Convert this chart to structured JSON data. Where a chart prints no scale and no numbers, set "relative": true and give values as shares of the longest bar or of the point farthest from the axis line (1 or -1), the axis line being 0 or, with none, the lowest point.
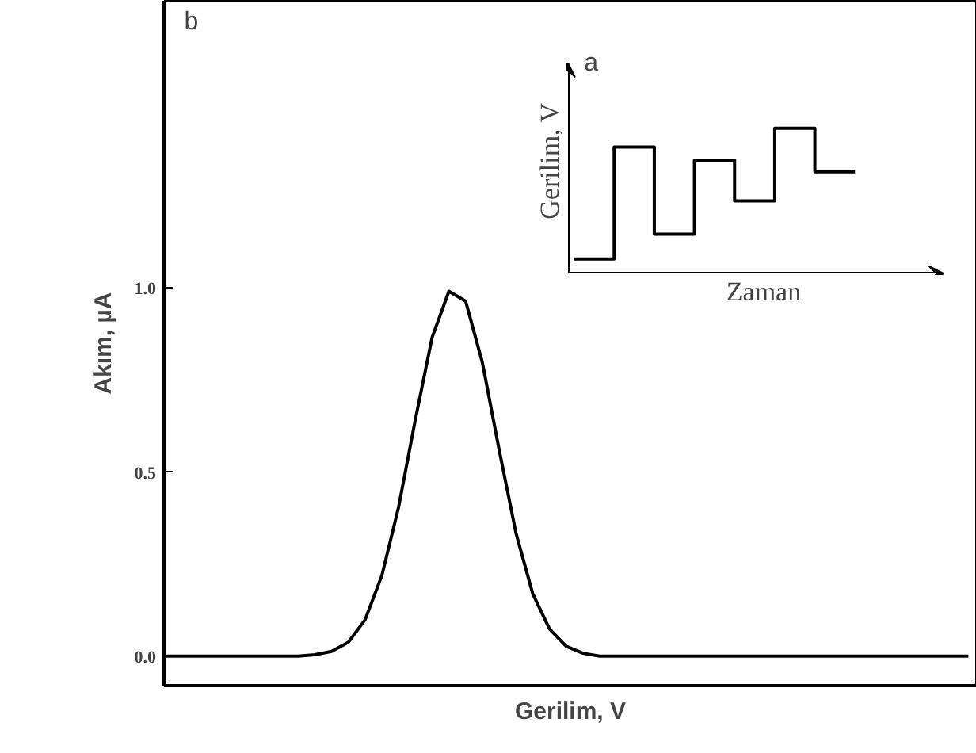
{
  "chart_data": [
    {
      "type": "line",
      "title": "b",
      "xlabel": "Gerilim, V",
      "ylabel": "Akım, µA",
      "color": "#000000",
      "ylim": [
        -0.08,
        1.78
      ],
      "yticks": [
        {
          "value": 0,
          "label": "0.0"
        },
        {
          "value": 0.5,
          "label": "0.5"
        },
        {
          "value": 1,
          "label": "1.0"
        }
      ],
      "tick_labels": "y",
      "categories": [
        null,
        null,
        null,
        null,
        null,
        null,
        null,
        null,
        null,
        null,
        null,
        null,
        null,
        null,
        null,
        null,
        null,
        null,
        null,
        null,
        null,
        null,
        null,
        null,
        null,
        null,
        null,
        null,
        null,
        null,
        null,
        null,
        null,
        null,
        null,
        null,
        null,
        null,
        null,
        null,
        null,
        null,
        null,
        null,
        null,
        null,
        null,
        null,
        null
      ],
      "values": [
        0,
        0,
        0,
        0,
        0,
        0,
        0,
        0,
        0,
        0.004,
        0.013,
        0.038,
        0.099,
        0.219,
        0.405,
        0.643,
        0.866,
        0.991,
        0.964,
        0.797,
        0.56,
        0.335,
        0.17,
        0.074,
        0.027,
        0.008,
        0,
        0,
        0,
        0,
        0,
        0,
        0,
        0,
        0,
        0,
        0,
        0,
        0,
        0,
        0,
        0,
        0,
        0,
        0,
        0,
        0,
        0,
        0
      ]
    },
    {
      "type": "step",
      "title": "a",
      "xlabel": "Zaman",
      "ylabel": "Gerilim, V",
      "color": "#000000",
      "relative": true,
      "tick_labels": false,
      "categories": [
        null,
        null,
        null,
        null,
        null,
        null,
        null,
        null
      ],
      "values": [
        0.1,
        0.87,
        0.27,
        0.78,
        0.5,
        1.0,
        0.7,
        0.7
      ]
    }
  ]
}
